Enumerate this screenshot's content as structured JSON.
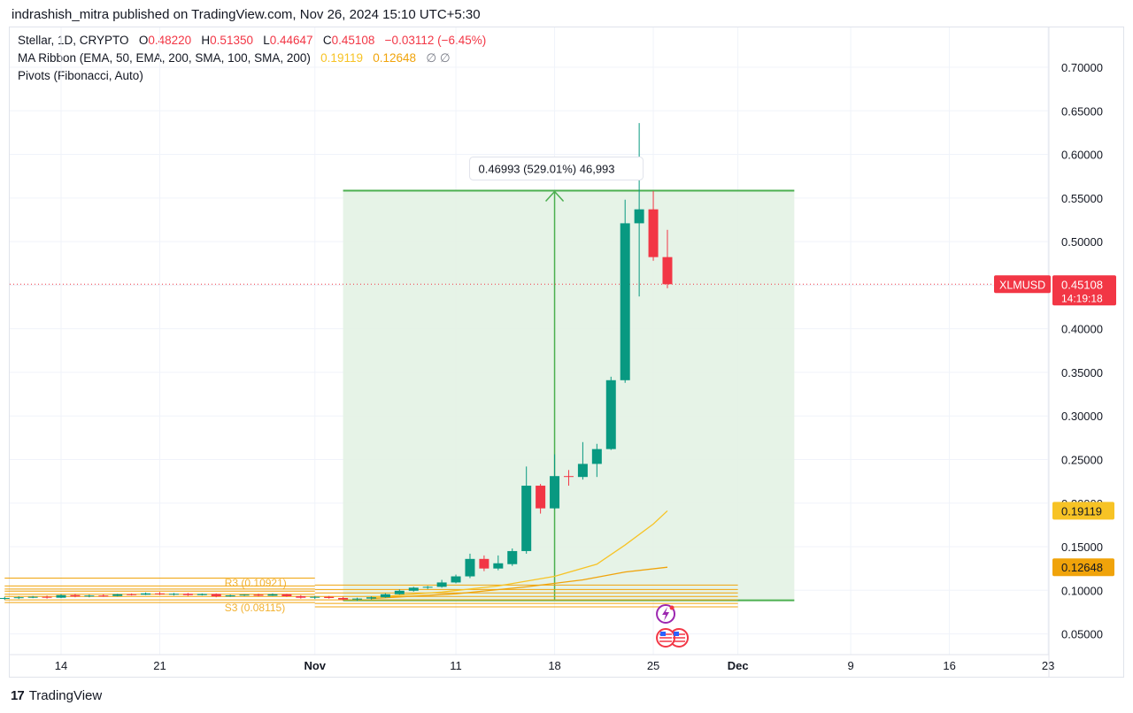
{
  "header": {
    "publish_line": "indrashish_mitra published on TradingView.com, Nov 26, 2024 15:10 UTC+5:30"
  },
  "legend": {
    "symbol_prefix": "Stellar, 1D, CRYPTO",
    "o_label": "O",
    "o_value": "0.48220",
    "h_label": "H",
    "h_value": "0.51350",
    "l_label": "L",
    "l_value": "0.44647",
    "c_label": "C",
    "c_value": "0.45108",
    "change": "−0.03112 (−6.45%)",
    "ma_label": "MA Ribbon (EMA, 50, EMA, 200, SMA, 100, SMA, 200)",
    "ma_value1": "0.19119",
    "ma_value2": "0.12648",
    "ma_na": "∅ ∅",
    "pivots_label": "Pivots (Fibonacci, Auto)"
  },
  "footer": {
    "brand": "TradingView",
    "logo_glyph": "17"
  },
  "colors": {
    "up": "#089981",
    "down": "#f23645",
    "range_fill": "#e3f2e4",
    "range_line": "#4caf50",
    "pivot": "#f0a30a",
    "ma1": "#f7c325",
    "ma2": "#f0a30a",
    "price_label": "#f23645"
  },
  "chart_data": {
    "type": "candlestick",
    "symbol": "XLMUSD",
    "y_axis": {
      "ticks": [
        "0.70000",
        "0.65000",
        "0.60000",
        "0.55000",
        "0.50000",
        "0.45000",
        "0.40000",
        "0.35000",
        "0.30000",
        "0.25000",
        "0.20000",
        "0.15000",
        "0.10000",
        "0.05000"
      ],
      "min": 0.03,
      "max": 0.73
    },
    "x_axis": {
      "ticks": [
        {
          "label": "14",
          "date": "2024-10-14"
        },
        {
          "label": "21",
          "date": "2024-10-21"
        },
        {
          "label": "Nov",
          "date": "2024-11-01",
          "bold": true
        },
        {
          "label": "11",
          "date": "2024-11-11"
        },
        {
          "label": "18",
          "date": "2024-11-18"
        },
        {
          "label": "25",
          "date": "2024-11-25"
        },
        {
          "label": "Dec",
          "date": "2024-12-01",
          "bold": true
        },
        {
          "label": "9",
          "date": "2024-12-09"
        },
        {
          "label": "16",
          "date": "2024-12-16"
        },
        {
          "label": "23",
          "date": "2024-12-23"
        }
      ]
    },
    "candles": [
      {
        "date": "2024-10-10",
        "o": 0.0905,
        "h": 0.0925,
        "l": 0.089,
        "c": 0.0912
      },
      {
        "date": "2024-10-11",
        "o": 0.0912,
        "h": 0.093,
        "l": 0.09,
        "c": 0.092
      },
      {
        "date": "2024-10-12",
        "o": 0.092,
        "h": 0.0935,
        "l": 0.091,
        "c": 0.0925
      },
      {
        "date": "2024-10-13",
        "o": 0.0925,
        "h": 0.094,
        "l": 0.0905,
        "c": 0.0915
      },
      {
        "date": "2024-10-14",
        "o": 0.0915,
        "h": 0.0955,
        "l": 0.091,
        "c": 0.0945
      },
      {
        "date": "2024-10-15",
        "o": 0.0945,
        "h": 0.096,
        "l": 0.092,
        "c": 0.093
      },
      {
        "date": "2024-10-16",
        "o": 0.093,
        "h": 0.095,
        "l": 0.092,
        "c": 0.094
      },
      {
        "date": "2024-10-17",
        "o": 0.094,
        "h": 0.0955,
        "l": 0.0925,
        "c": 0.0935
      },
      {
        "date": "2024-10-18",
        "o": 0.0935,
        "h": 0.096,
        "l": 0.093,
        "c": 0.0955
      },
      {
        "date": "2024-10-19",
        "o": 0.0955,
        "h": 0.0965,
        "l": 0.094,
        "c": 0.095
      },
      {
        "date": "2024-10-20",
        "o": 0.095,
        "h": 0.0975,
        "l": 0.0945,
        "c": 0.0965
      },
      {
        "date": "2024-10-21",
        "o": 0.0965,
        "h": 0.098,
        "l": 0.0945,
        "c": 0.0955
      },
      {
        "date": "2024-10-22",
        "o": 0.0955,
        "h": 0.097,
        "l": 0.094,
        "c": 0.096
      },
      {
        "date": "2024-10-23",
        "o": 0.096,
        "h": 0.097,
        "l": 0.0935,
        "c": 0.0945
      },
      {
        "date": "2024-10-24",
        "o": 0.0945,
        "h": 0.0965,
        "l": 0.094,
        "c": 0.0958
      },
      {
        "date": "2024-10-25",
        "o": 0.0958,
        "h": 0.0965,
        "l": 0.092,
        "c": 0.093
      },
      {
        "date": "2024-10-26",
        "o": 0.093,
        "h": 0.095,
        "l": 0.0925,
        "c": 0.0942
      },
      {
        "date": "2024-10-27",
        "o": 0.0942,
        "h": 0.0955,
        "l": 0.0935,
        "c": 0.095
      },
      {
        "date": "2024-10-28",
        "o": 0.095,
        "h": 0.0962,
        "l": 0.093,
        "c": 0.0938
      },
      {
        "date": "2024-10-29",
        "o": 0.0938,
        "h": 0.0965,
        "l": 0.0935,
        "c": 0.0955
      },
      {
        "date": "2024-10-30",
        "o": 0.0955,
        "h": 0.096,
        "l": 0.0925,
        "c": 0.0932
      },
      {
        "date": "2024-10-31",
        "o": 0.0932,
        "h": 0.0945,
        "l": 0.0905,
        "c": 0.0915
      },
      {
        "date": "2024-11-01",
        "o": 0.0915,
        "h": 0.0935,
        "l": 0.09,
        "c": 0.0925
      },
      {
        "date": "2024-11-02",
        "o": 0.0925,
        "h": 0.0935,
        "l": 0.0905,
        "c": 0.0912
      },
      {
        "date": "2024-11-03",
        "o": 0.0912,
        "h": 0.0925,
        "l": 0.0885,
        "c": 0.0895
      },
      {
        "date": "2024-11-04",
        "o": 0.0895,
        "h": 0.0915,
        "l": 0.088,
        "c": 0.0905
      },
      {
        "date": "2024-11-05",
        "o": 0.0905,
        "h": 0.093,
        "l": 0.0895,
        "c": 0.092
      },
      {
        "date": "2024-11-06",
        "o": 0.092,
        "h": 0.0965,
        "l": 0.0915,
        "c": 0.0955
      },
      {
        "date": "2024-11-07",
        "o": 0.0955,
        "h": 0.101,
        "l": 0.095,
        "c": 0.0995
      },
      {
        "date": "2024-11-08",
        "o": 0.0995,
        "h": 0.104,
        "l": 0.0985,
        "c": 0.103
      },
      {
        "date": "2024-11-09",
        "o": 0.103,
        "h": 0.105,
        "l": 0.1015,
        "c": 0.104
      },
      {
        "date": "2024-11-10",
        "o": 0.104,
        "h": 0.112,
        "l": 0.103,
        "c": 0.109
      },
      {
        "date": "2024-11-11",
        "o": 0.109,
        "h": 0.118,
        "l": 0.108,
        "c": 0.116
      },
      {
        "date": "2024-11-12",
        "o": 0.116,
        "h": 0.142,
        "l": 0.114,
        "c": 0.136
      },
      {
        "date": "2024-11-13",
        "o": 0.136,
        "h": 0.14,
        "l": 0.122,
        "c": 0.125
      },
      {
        "date": "2024-11-14",
        "o": 0.125,
        "h": 0.14,
        "l": 0.123,
        "c": 0.131
      },
      {
        "date": "2024-11-15",
        "o": 0.13,
        "h": 0.148,
        "l": 0.128,
        "c": 0.145
      },
      {
        "date": "2024-11-16",
        "o": 0.145,
        "h": 0.242,
        "l": 0.142,
        "c": 0.22
      },
      {
        "date": "2024-11-17",
        "o": 0.22,
        "h": 0.222,
        "l": 0.188,
        "c": 0.194
      },
      {
        "date": "2024-11-18",
        "o": 0.194,
        "h": 0.256,
        "l": 0.193,
        "c": 0.231
      },
      {
        "date": "2024-11-19",
        "o": 0.231,
        "h": 0.238,
        "l": 0.22,
        "c": 0.23
      },
      {
        "date": "2024-11-20",
        "o": 0.23,
        "h": 0.27,
        "l": 0.227,
        "c": 0.245
      },
      {
        "date": "2024-11-21",
        "o": 0.245,
        "h": 0.268,
        "l": 0.23,
        "c": 0.262
      },
      {
        "date": "2024-11-22",
        "o": 0.262,
        "h": 0.345,
        "l": 0.261,
        "c": 0.341
      },
      {
        "date": "2024-11-23",
        "o": 0.341,
        "h": 0.548,
        "l": 0.338,
        "c": 0.521
      },
      {
        "date": "2024-11-24",
        "o": 0.521,
        "h": 0.636,
        "l": 0.437,
        "c": 0.537
      },
      {
        "date": "2024-11-25",
        "o": 0.537,
        "h": 0.558,
        "l": 0.478,
        "c": 0.4822
      },
      {
        "date": "2024-11-26",
        "o": 0.4822,
        "h": 0.5135,
        "l": 0.4465,
        "c": 0.4511
      }
    ],
    "ma_ribbon": [
      {
        "name": "0.19119",
        "points": [
          {
            "date": "2024-11-05",
            "v": 0.092
          },
          {
            "date": "2024-11-10",
            "v": 0.098
          },
          {
            "date": "2024-11-14",
            "v": 0.105
          },
          {
            "date": "2024-11-18",
            "v": 0.116
          },
          {
            "date": "2024-11-21",
            "v": 0.13
          },
          {
            "date": "2024-11-23",
            "v": 0.152
          },
          {
            "date": "2024-11-25",
            "v": 0.176
          },
          {
            "date": "2024-11-26",
            "v": 0.1912
          }
        ]
      },
      {
        "name": "0.12648",
        "points": [
          {
            "date": "2024-11-05",
            "v": 0.0905
          },
          {
            "date": "2024-11-11",
            "v": 0.096
          },
          {
            "date": "2024-11-16",
            "v": 0.104
          },
          {
            "date": "2024-11-20",
            "v": 0.112
          },
          {
            "date": "2024-11-23",
            "v": 0.121
          },
          {
            "date": "2024-11-26",
            "v": 0.1265
          }
        ]
      }
    ],
    "pivots": {
      "levels": [
        {
          "label": "R3 (0.10921)",
          "v": 0.1092
        },
        {
          "label": "S3 (0.08115)",
          "v": 0.0812
        }
      ],
      "extra_lines": [
        0.114,
        0.105,
        0.1015,
        0.099,
        0.0955,
        0.093,
        0.089,
        0.086
      ],
      "extra_lines_late": [
        0.106,
        0.101,
        0.097,
        0.093,
        0.089,
        0.085,
        0.081
      ],
      "first_span": {
        "from": "2024-10-10",
        "to": "2024-11-01"
      },
      "second_span": {
        "from": "2024-11-01",
        "to": "2024-12-01"
      }
    },
    "price_range_tool": {
      "from_date": "2024-11-03",
      "to_date": "2024-12-05",
      "low": 0.0885,
      "high": 0.5585,
      "arrow_date": "2024-11-18",
      "label": "0.46993 (529.01%) 46,993"
    },
    "last_price": {
      "symbol_label": "XLMUSD",
      "value": "0.45108",
      "countdown": "14:19:18",
      "v": 0.45108
    },
    "ma_labels": [
      {
        "value": "0.19119",
        "v": 0.19119
      },
      {
        "value": "0.12648",
        "v": 0.12648
      }
    ],
    "grid": true,
    "legend_position": "top-left"
  }
}
